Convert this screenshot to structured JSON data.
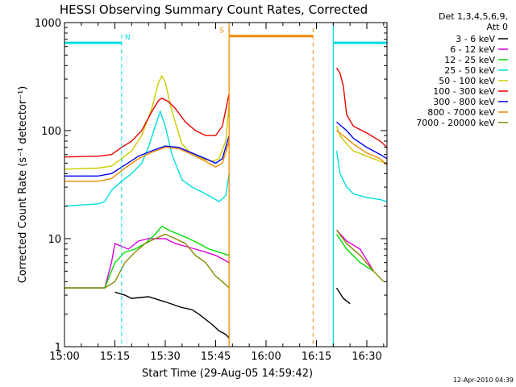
{
  "chart_data": {
    "type": "line",
    "title": "HESSI Observing Summary Count Rates, Corrected",
    "xlabel": "Start Time (29-Aug-05 14:59:42)",
    "ylabel": "Corrected Count Rate (s⁻¹ detector⁻¹)",
    "x_unit": "minutes after 15:00 UT",
    "xlim": [
      0,
      96
    ],
    "ylim": [
      1,
      1000
    ],
    "y_scale": "log",
    "x_ticks": [
      {
        "value": 0,
        "label": "15:00"
      },
      {
        "value": 15,
        "label": "15:15"
      },
      {
        "value": 30,
        "label": "15:30"
      },
      {
        "value": 45,
        "label": "15:45"
      },
      {
        "value": 60,
        "label": "16:00"
      },
      {
        "value": 75,
        "label": "16:15"
      },
      {
        "value": 90,
        "label": "16:30"
      }
    ],
    "y_ticks": [
      {
        "value": 1,
        "label": "1"
      },
      {
        "value": 10,
        "label": "10"
      },
      {
        "value": 100,
        "label": "100"
      },
      {
        "value": 1000,
        "label": "1000"
      }
    ],
    "legend_header": [
      "Det 1,3,4,5,6,9,",
      "Att 0"
    ],
    "legend_position": "right",
    "footer_date": "12-Apr-2010 04:39",
    "series": [
      {
        "name": "3 - 6 keV",
        "color": "#000000",
        "x": [
          15,
          18,
          20,
          25,
          30,
          35,
          38,
          40,
          44,
          46,
          48,
          49
        ],
        "y": [
          3.2,
          3.0,
          2.8,
          2.9,
          2.6,
          2.3,
          2.2,
          2.0,
          1.6,
          1.4,
          1.3,
          1.2
        ]
      },
      {
        "name": "6 - 12 keV",
        "color": "#dd00dd",
        "x": [
          0,
          12,
          14,
          15,
          17,
          19,
          22,
          25,
          28,
          30,
          33,
          36,
          39,
          42,
          45,
          47,
          49
        ],
        "y": [
          3.5,
          3.5,
          6.0,
          9.0,
          8.5,
          8.0,
          9.5,
          10.0,
          10.0,
          10.0,
          9.0,
          8.5,
          8.0,
          7.5,
          7.0,
          6.5,
          6.0
        ]
      },
      {
        "name": "12 - 25 keV",
        "color": "#00dd00",
        "x": [
          0,
          12,
          15,
          18,
          21,
          24,
          27,
          29,
          31,
          34,
          37,
          40,
          43,
          46,
          49
        ],
        "y": [
          3.5,
          3.5,
          6.0,
          7.5,
          8.0,
          9.0,
          11.0,
          13.0,
          12.0,
          11.0,
          10.0,
          9.0,
          8.0,
          7.5,
          7.0
        ]
      },
      {
        "name": "25 - 50 keV",
        "color": "#00dddd",
        "x": [
          0,
          10,
          12,
          14,
          17,
          20,
          23,
          25,
          27,
          28.5,
          30,
          32,
          35,
          38,
          41,
          44,
          46,
          48,
          49
        ],
        "y": [
          20,
          21,
          22,
          28,
          34,
          40,
          50,
          70,
          110,
          150,
          110,
          60,
          35,
          30,
          27,
          24,
          22,
          25,
          40
        ]
      },
      {
        "name": "50 - 100 keV",
        "color": "#cccc00",
        "x": [
          0,
          10,
          14,
          17,
          20,
          23,
          26,
          28,
          29,
          30,
          32,
          35,
          38,
          41,
          44,
          46,
          48,
          49
        ],
        "y": [
          44,
          45,
          47,
          55,
          65,
          90,
          160,
          280,
          320,
          280,
          150,
          75,
          60,
          55,
          52,
          55,
          80,
          180
        ]
      },
      {
        "name": "100 - 300 keV",
        "color": "#ee0000",
        "x": [
          0,
          10,
          14,
          17,
          20,
          23,
          26,
          28,
          29,
          31,
          33,
          36,
          39,
          42,
          45,
          47,
          49
        ],
        "y": [
          57,
          58,
          60,
          70,
          80,
          100,
          150,
          190,
          200,
          185,
          160,
          120,
          100,
          90,
          90,
          110,
          220
        ]
      },
      {
        "name": "300 - 800 keV",
        "color": "#0000ee",
        "x": [
          0,
          10,
          14,
          18,
          22,
          26,
          30,
          34,
          38,
          42,
          45,
          47,
          49
        ],
        "y": [
          38,
          38,
          40,
          48,
          58,
          65,
          72,
          70,
          62,
          55,
          50,
          55,
          90
        ]
      },
      {
        "name": "800 - 7000 keV",
        "color": "#ee8800",
        "x": [
          0,
          10,
          14,
          18,
          22,
          26,
          30,
          34,
          38,
          42,
          45,
          47,
          49
        ],
        "y": [
          34,
          34,
          36,
          45,
          55,
          63,
          70,
          68,
          60,
          52,
          46,
          50,
          80
        ]
      },
      {
        "name": "7000 - 20000 keV",
        "color": "#888800",
        "x": [
          0,
          12,
          15,
          18,
          21,
          24,
          27,
          30,
          33,
          36,
          39,
          42,
          45,
          47,
          49
        ],
        "y": [
          3.5,
          3.5,
          4.0,
          6.0,
          7.5,
          9.0,
          10.0,
          11.0,
          10.0,
          9.0,
          7.0,
          6.0,
          4.5,
          4.0,
          3.5
        ]
      }
    ],
    "segments_after_gap": [
      {
        "name": "3 - 6 keV",
        "x": [
          81,
          83,
          85
        ],
        "y": [
          3.5,
          2.8,
          2.5
        ]
      },
      {
        "name": "6 - 12 keV",
        "x": [
          81,
          84,
          88,
          92
        ],
        "y": [
          12,
          9.5,
          8,
          5
        ]
      },
      {
        "name": "12 - 25 keV",
        "x": [
          81,
          84,
          88,
          92
        ],
        "y": [
          11,
          8,
          6,
          5
        ]
      },
      {
        "name": "25 - 50 keV",
        "x": [
          81,
          82,
          84,
          86,
          90,
          94,
          96
        ],
        "y": [
          65,
          40,
          30,
          26,
          24,
          23,
          22
        ]
      },
      {
        "name": "50 - 100 keV",
        "x": [
          81,
          82,
          84,
          86,
          90,
          94,
          96
        ],
        "y": [
          110,
          90,
          75,
          65,
          58,
          52,
          50
        ]
      },
      {
        "name": "100 - 300 keV",
        "x": [
          81,
          82,
          83,
          84,
          86,
          90,
          94,
          96
        ],
        "y": [
          380,
          340,
          260,
          140,
          110,
          95,
          80,
          70
        ]
      },
      {
        "name": "300 - 800 keV",
        "x": [
          81,
          84,
          86,
          90,
          94,
          96
        ],
        "y": [
          120,
          100,
          85,
          70,
          60,
          55
        ]
      },
      {
        "name": "800 - 7000 keV",
        "x": [
          81,
          84,
          86,
          90,
          94,
          96
        ],
        "y": [
          100,
          85,
          75,
          62,
          55,
          48
        ]
      },
      {
        "name": "7000 - 20000 keV",
        "x": [
          81,
          84,
          88,
          92,
          95
        ],
        "y": [
          12,
          9,
          7,
          5,
          4
        ]
      }
    ],
    "attenuator_bars": [
      {
        "label": "N",
        "color": "#00dddd",
        "x_start": 0,
        "x_end": 17,
        "y": 650,
        "marker_x": [
          17
        ]
      },
      {
        "label": "S",
        "color": "#ee8800",
        "x_start": 49,
        "x_end": 74,
        "y": 750,
        "marker_x": [
          49,
          74
        ]
      },
      {
        "label": "",
        "color": "#00dddd",
        "x_start": 80,
        "x_end": 96,
        "y": 650,
        "marker_x": [
          80,
          96
        ]
      }
    ]
  }
}
